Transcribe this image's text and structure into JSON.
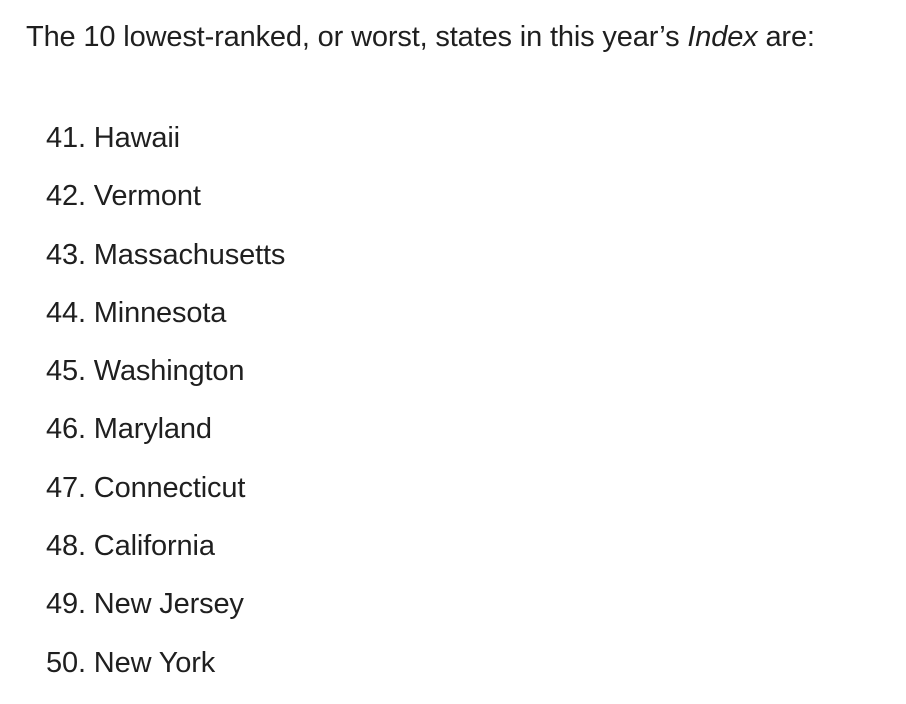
{
  "intro": {
    "before": "The 10 lowest-ranked, or worst, states in this year’s ",
    "emphasis": "Index",
    "after": " are:"
  },
  "states": [
    {
      "rank": "41.",
      "name": "Hawaii"
    },
    {
      "rank": "42.",
      "name": "Vermont"
    },
    {
      "rank": "43.",
      "name": "Massachusetts"
    },
    {
      "rank": "44.",
      "name": "Minnesota"
    },
    {
      "rank": "45.",
      "name": "Washington"
    },
    {
      "rank": "46.",
      "name": "Maryland"
    },
    {
      "rank": "47.",
      "name": "Connecticut"
    },
    {
      "rank": "48.",
      "name": "California"
    },
    {
      "rank": "49.",
      "name": "New Jersey"
    },
    {
      "rank": "50.",
      "name": "New York"
    }
  ]
}
